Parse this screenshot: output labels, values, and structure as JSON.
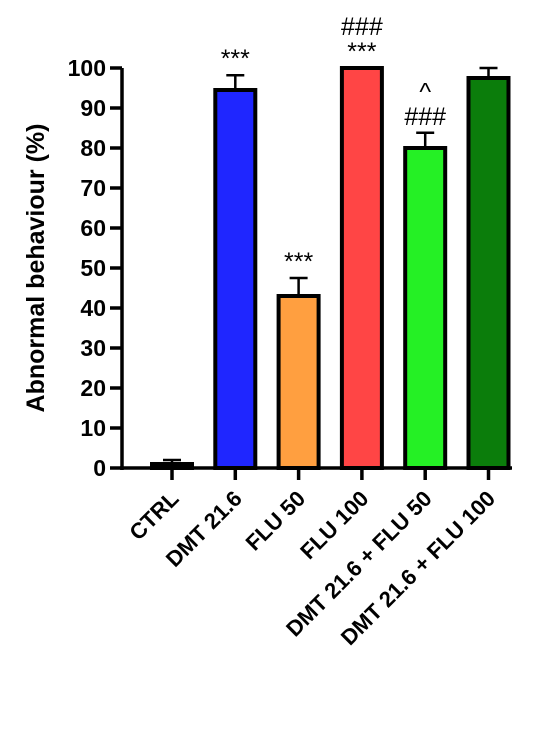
{
  "chart_data": {
    "type": "bar",
    "title": "",
    "xlabel": "",
    "ylabel": "Abnormal behaviour (%)",
    "ylim": [
      0,
      100
    ],
    "yticks": [
      0,
      10,
      20,
      30,
      40,
      50,
      60,
      70,
      80,
      90,
      100
    ],
    "grid": false,
    "categories": [
      "CTRL",
      "DMT 21.6",
      "FLU 50",
      "FLU 100",
      "DMT 21.6 + FLU 50",
      "DMT 21.6 + FLU 100"
    ],
    "values": [
      1,
      94.5,
      43,
      100,
      80,
      97.5
    ],
    "errors": [
      1,
      3.7,
      4.5,
      0,
      3.8,
      2.5
    ],
    "colors": [
      "#ffffff",
      "#1f26ff",
      "#ff9f40",
      "#ff4545",
      "#25f025",
      "#0b7d0b"
    ],
    "annotations": [
      [],
      [
        "***"
      ],
      [
        "***"
      ],
      [
        "***",
        "###"
      ],
      [
        "###",
        "^"
      ],
      []
    ]
  }
}
